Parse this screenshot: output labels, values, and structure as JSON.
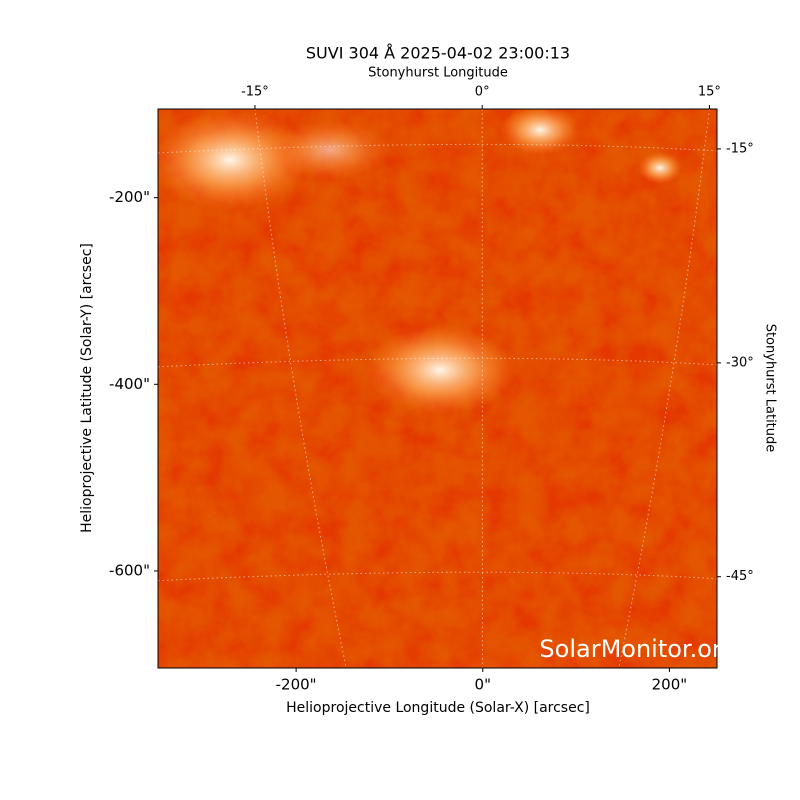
{
  "chart_data": {
    "type": "image",
    "title": "SUVI 304 Å 2025-04-02 23:00:13",
    "xlabel": "Helioprojective Longitude (Solar-X) [arcsec]",
    "ylabel": "Helioprojective Latitude (Solar-Y) [arcsec]",
    "x2label": "Stonyhurst Longitude",
    "y2label": "Stonyhurst Latitude",
    "watermark": "SolarMonitor.org",
    "xlim": [
      -348,
      251
    ],
    "ylim": [
      -704,
      -105
    ],
    "xticks": [
      {
        "value": -200,
        "label": "-200\""
      },
      {
        "value": 0,
        "label": "0\""
      },
      {
        "value": 200,
        "label": "200\""
      }
    ],
    "yticks": [
      {
        "value": -200,
        "label": "-200\""
      },
      {
        "value": -400,
        "label": "-400\""
      },
      {
        "value": -600,
        "label": "-600\""
      }
    ],
    "x2lim": [
      -21.4,
      15.5
    ],
    "x2ticks": [
      {
        "value": -15,
        "label": "-15°"
      },
      {
        "value": 0,
        "label": "0°"
      },
      {
        "value": 15,
        "label": "15°"
      }
    ],
    "y2lim": [
      -51.4,
      -12.2
    ],
    "y2ticks": [
      {
        "value": -15,
        "label": "-15°"
      },
      {
        "value": -30,
        "label": "-30°"
      },
      {
        "value": -45,
        "label": "-45°"
      }
    ],
    "grid": true
  }
}
